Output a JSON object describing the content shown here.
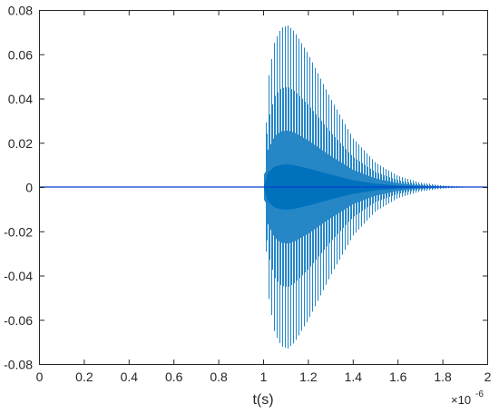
{
  "chart_data": {
    "type": "line",
    "xlabel": "t(s)",
    "x_exponent_base": "×10",
    "x_exponent_power": "-6",
    "xlim": [
      0,
      2
    ],
    "ylim": [
      -0.08,
      0.08
    ],
    "x_ticks": [
      0,
      0.2,
      0.4,
      0.6,
      0.8,
      1,
      1.2,
      1.4,
      1.6,
      1.8,
      2
    ],
    "x_tick_labels": [
      "0",
      "0.2",
      "0.4",
      "0.6",
      "0.8",
      "1",
      "1.2",
      "1.4",
      "1.6",
      "1.8",
      "2"
    ],
    "y_ticks": [
      -0.08,
      -0.06,
      -0.04,
      -0.02,
      0,
      0.02,
      0.04,
      0.06,
      0.08
    ],
    "y_tick_labels": [
      "-0.08",
      "-0.06",
      "-0.04",
      "-0.02",
      "0",
      "0.02",
      "0.04",
      "0.06",
      "0.08"
    ],
    "grid": false,
    "colors": {
      "signal": "#0072BD",
      "baseline": "#0b3fd0",
      "axis": "#262626"
    },
    "series": [
      {
        "style": "oscillation-envelope",
        "x_start": 1.0,
        "x_end": 2.0,
        "envelope": [
          [
            1.0,
            0.0
          ],
          [
            1.02,
            0.048
          ],
          [
            1.05,
            0.066
          ],
          [
            1.08,
            0.072
          ],
          [
            1.11,
            0.073
          ],
          [
            1.14,
            0.07
          ],
          [
            1.2,
            0.06
          ],
          [
            1.3,
            0.04
          ],
          [
            1.4,
            0.022
          ],
          [
            1.5,
            0.011
          ],
          [
            1.6,
            0.005
          ],
          [
            1.7,
            0.002
          ],
          [
            1.8,
            0.0007
          ],
          [
            1.9,
            0.0002
          ],
          [
            2.0,
            0.0
          ]
        ]
      },
      {
        "style": "baseline",
        "x": [
          0,
          2
        ],
        "y": [
          0,
          0
        ]
      }
    ]
  }
}
